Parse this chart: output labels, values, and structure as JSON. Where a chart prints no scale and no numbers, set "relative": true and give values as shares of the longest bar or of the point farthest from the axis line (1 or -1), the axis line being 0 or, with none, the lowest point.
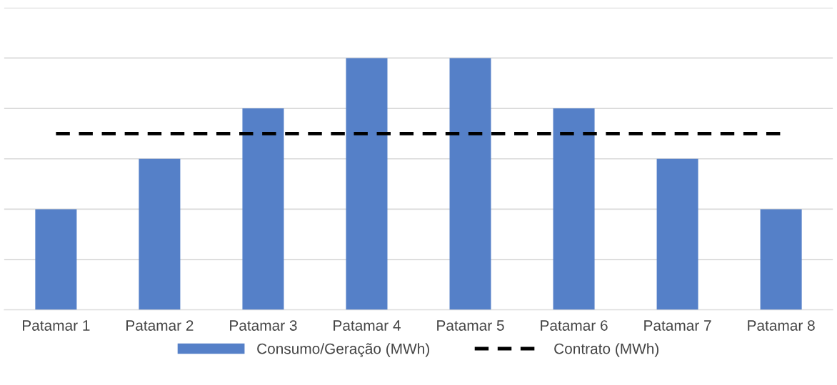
{
  "chart_data": {
    "type": "bar",
    "relative": true,
    "categories": [
      "Patamar 1",
      "Patamar 2",
      "Patamar 3",
      "Patamar 4",
      "Patamar 5",
      "Patamar 6",
      "Patamar 7",
      "Patamar 8"
    ],
    "series": [
      {
        "name": "Consumo/Geração (MWh)",
        "color": "#5580c8",
        "values": [
          0.4,
          0.6,
          0.8,
          1,
          1,
          0.8,
          0.6,
          0.4
        ]
      },
      {
        "name": "Contrato (MWh)",
        "type": "line",
        "color": "#000000",
        "line_style": "dashed",
        "values": [
          0.7,
          0.7,
          0.7,
          0.7,
          0.7,
          0.7,
          0.7,
          0.7
        ]
      }
    ],
    "grid": "y",
    "legend": "bottom",
    "marker": "none"
  }
}
